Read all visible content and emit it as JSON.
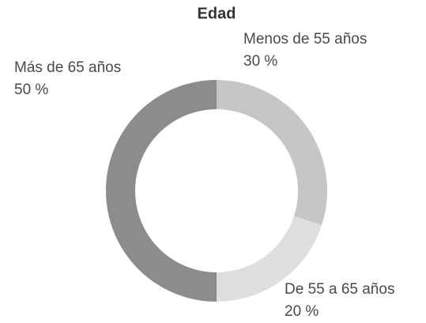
{
  "chart_data": {
    "type": "donut",
    "title": "Edad",
    "categories": [
      "Menos de 55 años",
      "De 55 a 65 años",
      "Más de 65 años"
    ],
    "values": [
      30,
      20,
      50
    ],
    "value_labels": [
      "30 %",
      "20 %",
      "50 %"
    ],
    "colors": [
      "#c6c6c6",
      "#dedede",
      "#8c8c8c"
    ]
  }
}
